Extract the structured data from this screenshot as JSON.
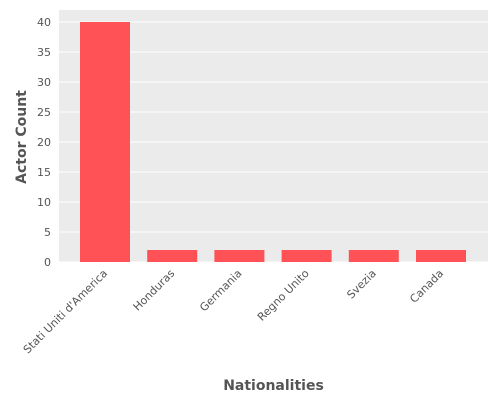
{
  "chart_data": {
    "type": "bar",
    "title": "",
    "xlabel": "Nationalities",
    "ylabel": "Actor Count",
    "categories": [
      "Stati Uniti d'America",
      "Honduras",
      "Germania",
      "Regno Unito",
      "Svezia",
      "Canada"
    ],
    "values": [
      40,
      2,
      2,
      2,
      2,
      2
    ],
    "ylim": [
      0,
      42
    ],
    "yticks": [
      0,
      5,
      10,
      15,
      20,
      25,
      30,
      35,
      40
    ],
    "grid": true,
    "legend": "none",
    "colors": {
      "bar": "#FF5257",
      "panel_background": "#EBEBEB",
      "grid": "#FFFFFF",
      "text": "#555555"
    }
  }
}
